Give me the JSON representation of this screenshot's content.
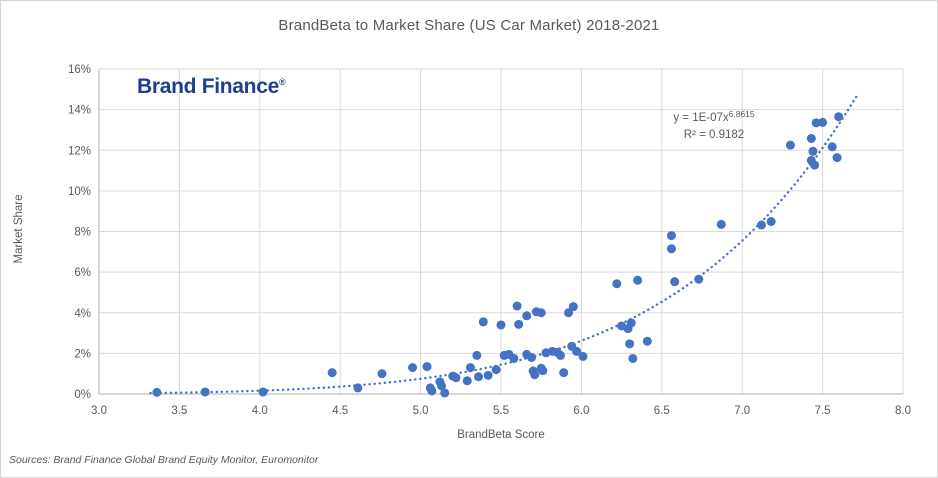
{
  "chart": {
    "title": "BrandBeta to Market Share (US Car Market) 2018-2021",
    "source_note": "Sources: Brand Finance Global Brand Equity Monitor, Euromonitor"
  },
  "branding": {
    "logo_text": "Brand Finance",
    "registered_mark": "®"
  },
  "chart_data": {
    "type": "scatter",
    "title": "BrandBeta to Market Share (US Car Market) 2018-2021",
    "xlabel": "BrandBeta Score",
    "ylabel": "Market Share",
    "xlim": [
      3,
      8
    ],
    "ylim": [
      0,
      16
    ],
    "x_ticks": [
      "3.0",
      "3.5",
      "4.0",
      "4.5",
      "5.0",
      "5.5",
      "6.0",
      "6.5",
      "7.0",
      "7.5",
      "8.0"
    ],
    "x_tick_values": [
      3.0,
      3.5,
      4.0,
      4.5,
      5.0,
      5.5,
      6.0,
      6.5,
      7.0,
      7.5,
      8.0
    ],
    "y_ticks": [
      "0%",
      "2%",
      "4%",
      "6%",
      "8%",
      "10%",
      "12%",
      "14%",
      "16%"
    ],
    "y_tick_values": [
      0,
      2,
      4,
      6,
      8,
      10,
      12,
      14,
      16
    ],
    "grid": true,
    "legend_position": "none",
    "points": [
      [
        3.36,
        0.08
      ],
      [
        3.66,
        0.1
      ],
      [
        4.02,
        0.1
      ],
      [
        4.45,
        1.05
      ],
      [
        4.61,
        0.3
      ],
      [
        4.76,
        1.0
      ],
      [
        4.95,
        1.3
      ],
      [
        5.04,
        1.35
      ],
      [
        5.06,
        0.3
      ],
      [
        5.07,
        0.15
      ],
      [
        5.12,
        0.6
      ],
      [
        5.13,
        0.4
      ],
      [
        5.15,
        0.05
      ],
      [
        5.2,
        0.88
      ],
      [
        5.22,
        0.8
      ],
      [
        5.29,
        0.65
      ],
      [
        5.31,
        1.3
      ],
      [
        5.35,
        1.9
      ],
      [
        5.36,
        0.85
      ],
      [
        5.39,
        3.55
      ],
      [
        5.42,
        0.92
      ],
      [
        5.47,
        1.2
      ],
      [
        5.5,
        3.4
      ],
      [
        5.52,
        1.9
      ],
      [
        5.55,
        1.95
      ],
      [
        5.58,
        1.75
      ],
      [
        5.6,
        4.33
      ],
      [
        5.61,
        3.43
      ],
      [
        5.66,
        3.85
      ],
      [
        5.66,
        1.95
      ],
      [
        5.69,
        1.8
      ],
      [
        5.7,
        1.13
      ],
      [
        5.71,
        0.95
      ],
      [
        5.72,
        4.05
      ],
      [
        5.75,
        4.0
      ],
      [
        5.75,
        1.27
      ],
      [
        5.76,
        1.15
      ],
      [
        5.78,
        2.03
      ],
      [
        5.82,
        2.1
      ],
      [
        5.85,
        2.05
      ],
      [
        5.87,
        1.9
      ],
      [
        5.89,
        1.05
      ],
      [
        5.92,
        4.0
      ],
      [
        5.94,
        2.35
      ],
      [
        5.95,
        4.3
      ],
      [
        5.97,
        2.1
      ],
      [
        6.01,
        1.85
      ],
      [
        6.22,
        5.43
      ],
      [
        6.25,
        3.35
      ],
      [
        6.29,
        3.22
      ],
      [
        6.31,
        3.5
      ],
      [
        6.3,
        2.47
      ],
      [
        6.32,
        1.75
      ],
      [
        6.35,
        5.6
      ],
      [
        6.41,
        2.6
      ],
      [
        6.56,
        7.8
      ],
      [
        6.56,
        7.15
      ],
      [
        6.58,
        5.53
      ],
      [
        6.73,
        5.65
      ],
      [
        6.87,
        8.35
      ],
      [
        7.12,
        8.32
      ],
      [
        7.18,
        8.49
      ],
      [
        7.3,
        12.25
      ],
      [
        7.43,
        12.58
      ],
      [
        7.43,
        11.5
      ],
      [
        7.44,
        11.95
      ],
      [
        7.45,
        11.27
      ],
      [
        7.46,
        13.35
      ],
      [
        7.5,
        13.37
      ],
      [
        7.56,
        12.17
      ],
      [
        7.59,
        11.64
      ],
      [
        7.6,
        13.65
      ]
    ],
    "trendline": {
      "type": "power",
      "equation_label": "y = 1E-07x^6.8615",
      "equation_base": "y = 1E-07x",
      "equation_exponent": "6.8615",
      "r_squared_label": "R² = 0.9182",
      "render_coefficient": 1.2e-07,
      "exponent": 6.8615,
      "x_start": 3.32,
      "x_end": 7.72
    },
    "colors": {
      "point": "#4472c4",
      "trendline": "#4472c4",
      "grid": "#d9d9d9",
      "axis": "#bfbfbf",
      "text": "#595959",
      "logo": "#1c3f94"
    }
  }
}
